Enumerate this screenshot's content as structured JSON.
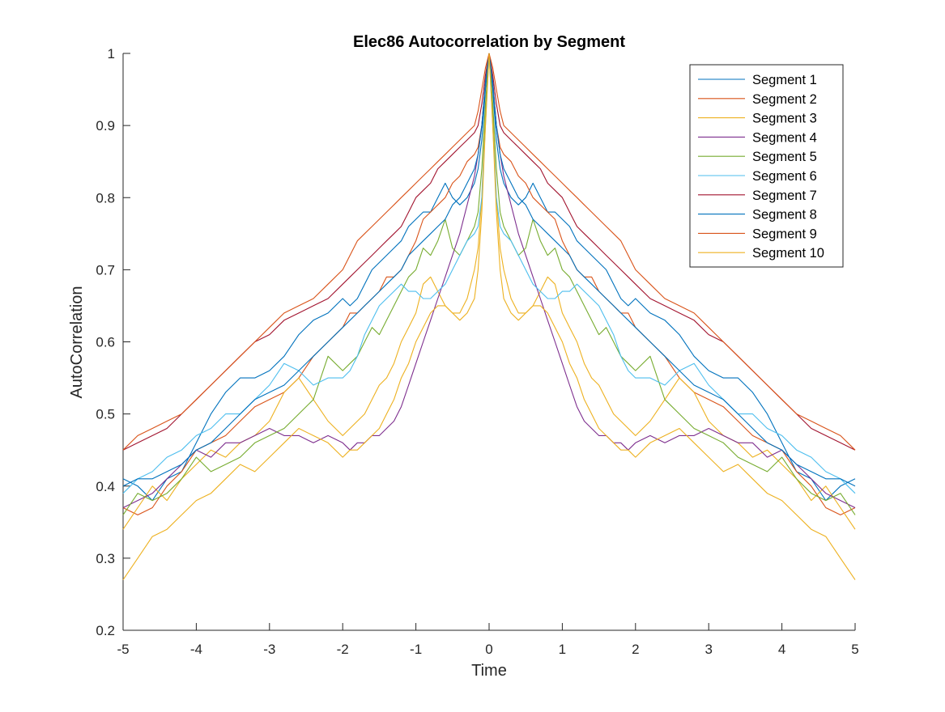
{
  "chart_data": {
    "type": "line",
    "title": "Elec86 Autocorrelation by Segment",
    "xlabel": "Time",
    "ylabel": "AutoCorrelation",
    "xlim": [
      -5,
      5
    ],
    "ylim": [
      0.2,
      1
    ],
    "x_ticks": [
      -5,
      -4,
      -3,
      -2,
      -1,
      0,
      1,
      2,
      3,
      4,
      5
    ],
    "y_ticks": [
      0.2,
      0.3,
      0.4,
      0.5,
      0.6,
      0.7,
      0.8,
      0.9,
      1
    ],
    "grid": false,
    "legend_position": "top-right",
    "symmetric_about_zero": true,
    "x": [
      0,
      0.05,
      0.1,
      0.15,
      0.2,
      0.3,
      0.4,
      0.5,
      0.6,
      0.7,
      0.8,
      0.9,
      1.0,
      1.1,
      1.2,
      1.3,
      1.4,
      1.5,
      1.6,
      1.7,
      1.8,
      1.9,
      2.0,
      2.2,
      2.4,
      2.6,
      2.8,
      3.0,
      3.2,
      3.4,
      3.6,
      3.8,
      4.0,
      4.2,
      4.4,
      4.6,
      4.8,
      5.0
    ],
    "series": [
      {
        "name": "Segment 1",
        "color": "#0072BD",
        "values": [
          1.0,
          0.95,
          0.88,
          0.84,
          0.82,
          0.8,
          0.79,
          0.8,
          0.82,
          0.8,
          0.78,
          0.78,
          0.77,
          0.76,
          0.74,
          0.73,
          0.72,
          0.71,
          0.7,
          0.68,
          0.66,
          0.65,
          0.66,
          0.64,
          0.63,
          0.61,
          0.58,
          0.56,
          0.55,
          0.55,
          0.53,
          0.5,
          0.46,
          0.42,
          0.41,
          0.38,
          0.4,
          0.41
        ]
      },
      {
        "name": "Segment 2",
        "color": "#D95319",
        "values": [
          1.0,
          0.96,
          0.9,
          0.87,
          0.86,
          0.85,
          0.83,
          0.82,
          0.8,
          0.79,
          0.78,
          0.77,
          0.74,
          0.72,
          0.7,
          0.69,
          0.69,
          0.67,
          0.66,
          0.65,
          0.64,
          0.64,
          0.62,
          0.6,
          0.58,
          0.55,
          0.53,
          0.52,
          0.51,
          0.49,
          0.47,
          0.46,
          0.45,
          0.42,
          0.4,
          0.37,
          0.36,
          0.37
        ]
      },
      {
        "name": "Segment 3",
        "color": "#EDB120",
        "values": [
          1.0,
          0.92,
          0.8,
          0.73,
          0.7,
          0.66,
          0.64,
          0.64,
          0.65,
          0.67,
          0.69,
          0.68,
          0.64,
          0.62,
          0.6,
          0.57,
          0.55,
          0.54,
          0.52,
          0.5,
          0.49,
          0.48,
          0.47,
          0.49,
          0.52,
          0.55,
          0.53,
          0.49,
          0.47,
          0.46,
          0.44,
          0.45,
          0.43,
          0.41,
          0.38,
          0.4,
          0.37,
          0.34
        ]
      },
      {
        "name": "Segment 4",
        "color": "#7E2F8E",
        "values": [
          1.0,
          0.96,
          0.9,
          0.86,
          0.83,
          0.79,
          0.75,
          0.72,
          0.69,
          0.66,
          0.63,
          0.6,
          0.57,
          0.54,
          0.51,
          0.49,
          0.48,
          0.47,
          0.47,
          0.46,
          0.46,
          0.45,
          0.46,
          0.47,
          0.46,
          0.47,
          0.47,
          0.48,
          0.47,
          0.46,
          0.46,
          0.44,
          0.45,
          0.43,
          0.41,
          0.39,
          0.38,
          0.37
        ]
      },
      {
        "name": "Segment 5",
        "color": "#77AC30",
        "values": [
          1.0,
          0.93,
          0.84,
          0.78,
          0.76,
          0.74,
          0.72,
          0.73,
          0.77,
          0.74,
          0.72,
          0.73,
          0.7,
          0.69,
          0.67,
          0.65,
          0.63,
          0.61,
          0.62,
          0.6,
          0.58,
          0.57,
          0.56,
          0.58,
          0.52,
          0.5,
          0.48,
          0.47,
          0.46,
          0.44,
          0.43,
          0.42,
          0.44,
          0.41,
          0.39,
          0.38,
          0.39,
          0.36
        ]
      },
      {
        "name": "Segment 6",
        "color": "#4DBEEE",
        "values": [
          1.0,
          0.9,
          0.8,
          0.76,
          0.75,
          0.74,
          0.72,
          0.7,
          0.68,
          0.67,
          0.66,
          0.66,
          0.67,
          0.67,
          0.68,
          0.67,
          0.66,
          0.65,
          0.63,
          0.61,
          0.58,
          0.56,
          0.55,
          0.55,
          0.54,
          0.56,
          0.57,
          0.54,
          0.52,
          0.5,
          0.5,
          0.48,
          0.47,
          0.45,
          0.44,
          0.42,
          0.41,
          0.39
        ]
      },
      {
        "name": "Segment 7",
        "color": "#A2142F",
        "values": [
          1.0,
          0.97,
          0.93,
          0.9,
          0.89,
          0.88,
          0.87,
          0.86,
          0.85,
          0.84,
          0.82,
          0.81,
          0.8,
          0.78,
          0.76,
          0.75,
          0.74,
          0.73,
          0.72,
          0.71,
          0.7,
          0.69,
          0.68,
          0.66,
          0.65,
          0.64,
          0.63,
          0.61,
          0.6,
          0.58,
          0.56,
          0.54,
          0.52,
          0.5,
          0.48,
          0.47,
          0.46,
          0.45
        ]
      },
      {
        "name": "Segment 8",
        "color": "#0072BD",
        "values": [
          1.0,
          0.96,
          0.9,
          0.86,
          0.84,
          0.82,
          0.8,
          0.79,
          0.77,
          0.76,
          0.75,
          0.74,
          0.73,
          0.72,
          0.7,
          0.69,
          0.68,
          0.67,
          0.66,
          0.65,
          0.64,
          0.63,
          0.62,
          0.6,
          0.58,
          0.56,
          0.54,
          0.53,
          0.52,
          0.5,
          0.48,
          0.46,
          0.45,
          0.43,
          0.42,
          0.41,
          0.41,
          0.4
        ]
      },
      {
        "name": "Segment 9",
        "color": "#D95319",
        "values": [
          1.0,
          0.98,
          0.95,
          0.92,
          0.9,
          0.89,
          0.88,
          0.87,
          0.86,
          0.85,
          0.84,
          0.83,
          0.82,
          0.81,
          0.8,
          0.79,
          0.78,
          0.77,
          0.76,
          0.75,
          0.74,
          0.72,
          0.7,
          0.68,
          0.66,
          0.65,
          0.64,
          0.62,
          0.6,
          0.58,
          0.56,
          0.54,
          0.52,
          0.5,
          0.49,
          0.48,
          0.47,
          0.45
        ]
      },
      {
        "name": "Segment 10",
        "color": "#EDB120",
        "values": [
          1.0,
          0.9,
          0.78,
          0.7,
          0.66,
          0.64,
          0.63,
          0.64,
          0.65,
          0.65,
          0.64,
          0.62,
          0.6,
          0.57,
          0.55,
          0.52,
          0.5,
          0.48,
          0.47,
          0.46,
          0.45,
          0.45,
          0.44,
          0.46,
          0.47,
          0.48,
          0.46,
          0.44,
          0.42,
          0.43,
          0.41,
          0.39,
          0.38,
          0.36,
          0.34,
          0.33,
          0.3,
          0.27
        ]
      }
    ]
  }
}
